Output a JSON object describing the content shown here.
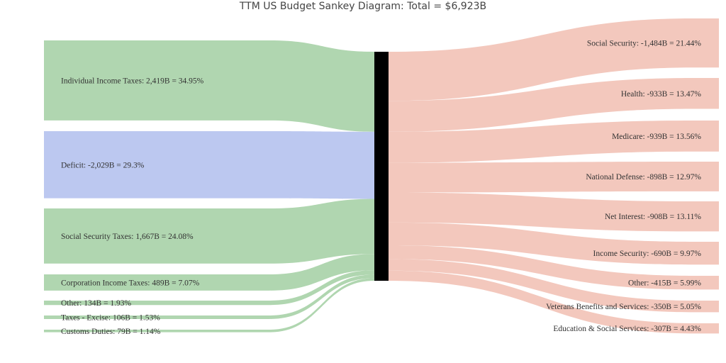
{
  "title": "TTM US Budget Sankey Diagram: Total = $6,923B",
  "colors": {
    "income": "#b0d6b0",
    "deficit": "#bcc8f0",
    "spending": "#f3c8bd",
    "hub": "#000000"
  },
  "chart_data": {
    "type": "sankey",
    "title": "TTM US Budget Sankey Diagram: Total = $6,923B",
    "total": 6923,
    "sources": [
      {
        "name": "Individual Income Taxes",
        "value": 2419,
        "label": "Individual Income Taxes: 2,419B = 34.95%",
        "kind": "income"
      },
      {
        "name": "Deficit",
        "value": 2029,
        "label": "Deficit: -2,029B = 29.3%",
        "kind": "deficit"
      },
      {
        "name": "Social Security Taxes",
        "value": 1667,
        "label": "Social Security Taxes: 1,667B = 24.08%",
        "kind": "income"
      },
      {
        "name": "Corporation Income Taxes",
        "value": 489,
        "label": "Corporation Income Taxes: 489B = 7.07%",
        "kind": "income"
      },
      {
        "name": "Other",
        "value": 134,
        "label": "Other: 134B = 1.93%",
        "kind": "income"
      },
      {
        "name": "Taxes - Excise",
        "value": 106,
        "label": "Taxes - Excise: 106B = 1.53%",
        "kind": "income"
      },
      {
        "name": "Customs Duties",
        "value": 79,
        "label": "Customs Duties: 79B = 1.14%",
        "kind": "income"
      }
    ],
    "targets": [
      {
        "name": "Social Security",
        "value": 1484,
        "label": "Social Security: -1,484B = 21.44%"
      },
      {
        "name": "Health",
        "value": 933,
        "label": "Health: -933B = 13.47%"
      },
      {
        "name": "Medicare",
        "value": 939,
        "label": "Medicare: -939B = 13.56%"
      },
      {
        "name": "National Defense",
        "value": 898,
        "label": "National Defense: -898B = 12.97%"
      },
      {
        "name": "Net Interest",
        "value": 908,
        "label": "Net Interest: -908B = 13.11%"
      },
      {
        "name": "Income Security",
        "value": 690,
        "label": "Income Security: -690B = 9.97%"
      },
      {
        "name": "Other",
        "value": 415,
        "label": "Other: -415B = 5.99%"
      },
      {
        "name": "Veterans Benefits and Services",
        "value": 350,
        "label": "Veterans Benefits and Services: -350B = 5.05%"
      },
      {
        "name": "Education & Social Services",
        "value": 307,
        "label": "Education & Social Services: -307B = 4.43%"
      }
    ]
  }
}
